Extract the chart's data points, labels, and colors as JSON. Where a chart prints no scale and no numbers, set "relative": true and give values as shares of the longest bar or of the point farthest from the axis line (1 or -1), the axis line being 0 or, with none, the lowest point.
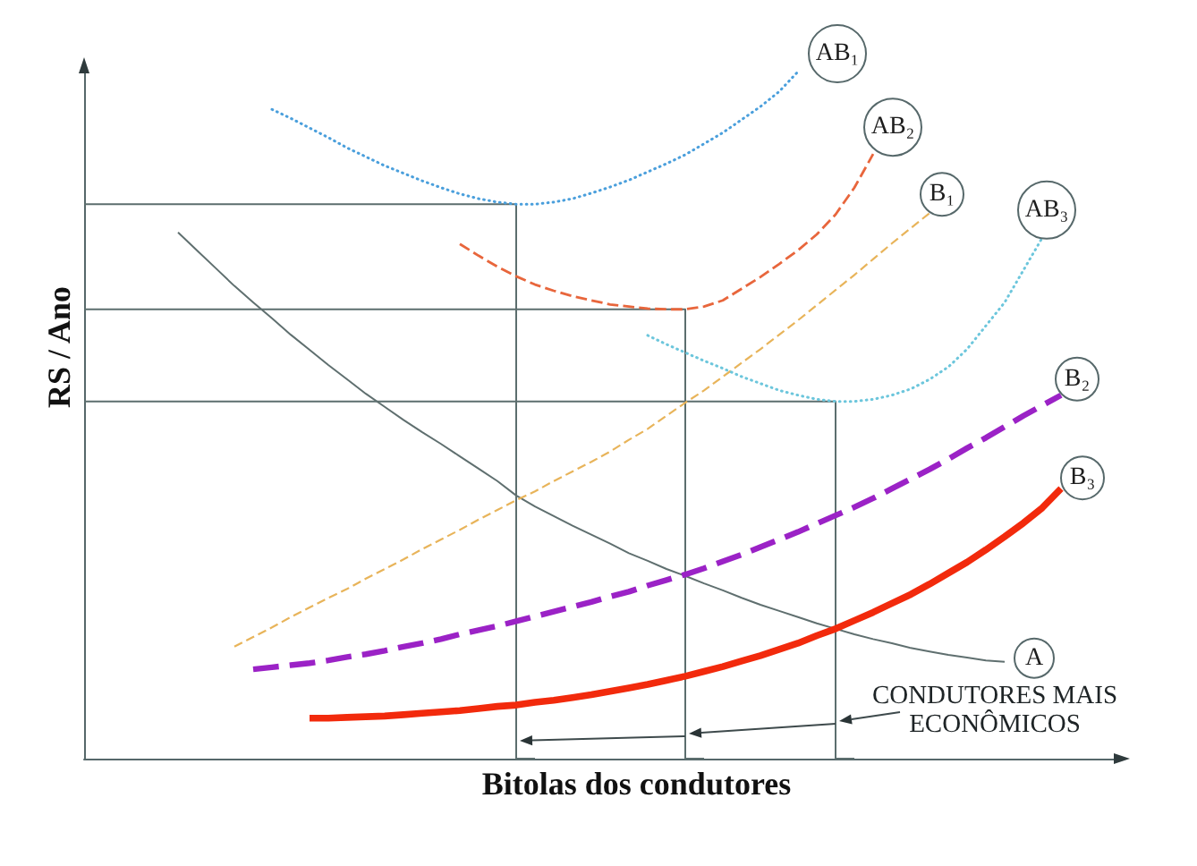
{
  "chart_data": {
    "type": "line",
    "relative": true,
    "xlabel": "Bitolas dos condutores",
    "ylabel": "RS / Ano",
    "annotations": [
      "CONDUTORES MAIS ECONÔMICOS"
    ],
    "legend": false,
    "grid": false,
    "tick_labels": false,
    "marker": "none",
    "categories": [
      null,
      null,
      null,
      null,
      null,
      null,
      null,
      null,
      null,
      null,
      null,
      null,
      null,
      null,
      null,
      null,
      null,
      null,
      null,
      null,
      null,
      null,
      null,
      null,
      null,
      null,
      null,
      null,
      null,
      null,
      null,
      null,
      null,
      null,
      null,
      null,
      null,
      null,
      null,
      null,
      null,
      null,
      null,
      null,
      null,
      null,
      null,
      null,
      null,
      null,
      null,
      null,
      null,
      null,
      null,
      null
    ],
    "series": [
      {
        "name": "A",
        "color": "#5f6f6f",
        "line_style": "solid",
        "values": [
          null,
          null,
          null,
          null,
          null,
          0.766,
          0.74,
          0.714,
          0.688,
          0.664,
          0.641,
          0.617,
          0.595,
          0.573,
          0.552,
          0.531,
          0.512,
          0.493,
          0.475,
          0.458,
          0.44,
          0.422,
          0.404,
          0.383,
          0.367,
          0.353,
          0.339,
          0.326,
          0.313,
          0.299,
          0.288,
          0.276,
          0.266,
          0.255,
          0.245,
          0.234,
          0.224,
          0.215,
          0.206,
          0.197,
          0.189,
          0.181,
          0.174,
          0.168,
          0.161,
          0.156,
          0.151,
          0.147,
          0.143,
          0.141,
          null,
          null,
          null,
          null,
          null,
          null
        ]
      },
      {
        "name": "B₁",
        "color": "#e8b45a",
        "line_style": "dashed",
        "values": [
          null,
          null,
          null,
          null,
          null,
          null,
          null,
          null,
          0.163,
          0.177,
          0.191,
          0.206,
          0.22,
          0.234,
          0.247,
          0.262,
          0.276,
          0.29,
          0.305,
          0.319,
          0.333,
          0.348,
          0.362,
          0.376,
          0.389,
          0.404,
          0.418,
          0.432,
          0.447,
          0.464,
          0.48,
          0.499,
          0.518,
          0.536,
          0.556,
          0.576,
          0.596,
          0.617,
          0.638,
          0.66,
          0.682,
          0.704,
          0.727,
          0.75,
          0.772,
          0.794,
          null,
          null,
          null,
          null,
          null,
          null,
          null,
          null,
          null,
          null
        ]
      },
      {
        "name": "B₂",
        "color": "#9b22c6",
        "line_style": "dashed",
        "values": [
          null,
          null,
          null,
          null,
          null,
          null,
          null,
          null,
          null,
          0.13,
          0.133,
          0.136,
          0.139,
          0.143,
          0.148,
          0.152,
          0.157,
          0.163,
          0.168,
          0.174,
          0.181,
          0.187,
          0.193,
          0.2,
          0.207,
          0.214,
          0.221,
          0.228,
          0.236,
          0.243,
          0.252,
          0.26,
          0.268,
          0.277,
          0.287,
          0.297,
          0.308,
          0.319,
          0.33,
          0.342,
          0.354,
          0.366,
          0.379,
          0.393,
          0.407,
          0.421,
          0.436,
          0.452,
          0.467,
          0.483,
          0.499,
          0.514,
          0.529,
          null,
          null,
          null
        ]
      },
      {
        "name": "B₃",
        "color": "#f22a0c",
        "line_style": "solid",
        "values": [
          null,
          null,
          null,
          null,
          null,
          null,
          null,
          null,
          null,
          null,
          null,
          null,
          0.059,
          0.059,
          0.06,
          0.061,
          0.062,
          0.064,
          0.066,
          0.068,
          0.07,
          0.073,
          0.076,
          0.078,
          0.082,
          0.085,
          0.089,
          0.093,
          0.098,
          0.103,
          0.108,
          0.114,
          0.12,
          0.127,
          0.134,
          0.142,
          0.15,
          0.159,
          0.168,
          0.179,
          0.189,
          0.201,
          0.213,
          0.226,
          0.239,
          0.254,
          0.27,
          0.286,
          0.304,
          0.323,
          0.343,
          0.365,
          0.393,
          null,
          null,
          null
        ]
      },
      {
        "name": "AB₁",
        "color": "#4a9fdc",
        "line_style": "dotted",
        "values": [
          null,
          null,
          null,
          null,
          null,
          null,
          null,
          null,
          null,
          null,
          0.945,
          0.932,
          0.918,
          0.904,
          0.889,
          0.876,
          0.863,
          0.852,
          0.841,
          0.831,
          0.822,
          0.815,
          0.81,
          0.807,
          0.807,
          0.81,
          0.815,
          0.823,
          0.832,
          0.842,
          0.854,
          0.866,
          0.879,
          0.895,
          0.911,
          0.93,
          0.949,
          0.971,
          1,
          null,
          null,
          null,
          null,
          null,
          null,
          null,
          null,
          null,
          null,
          null,
          null,
          null,
          null,
          null,
          null,
          null
        ]
      },
      {
        "name": "AB₂",
        "color": "#e8663c",
        "line_style": "dashed",
        "values": [
          null,
          null,
          null,
          null,
          null,
          null,
          null,
          null,
          null,
          null,
          null,
          null,
          null,
          null,
          null,
          null,
          null,
          null,
          null,
          null,
          0.749,
          0.732,
          0.716,
          0.702,
          0.69,
          0.681,
          0.673,
          0.667,
          0.661,
          0.658,
          0.655,
          0.654,
          0.654,
          0.658,
          0.667,
          0.684,
          0.701,
          0.72,
          0.74,
          0.763,
          0.792,
          0.831,
          0.88,
          null,
          null,
          null,
          null,
          null,
          null,
          null,
          null,
          null,
          null,
          null,
          null,
          null
        ]
      },
      {
        "name": "AB₃",
        "color": "#6cc6dc",
        "line_style": "dotted",
        "values": [
          null,
          null,
          null,
          null,
          null,
          null,
          null,
          null,
          null,
          null,
          null,
          null,
          null,
          null,
          null,
          null,
          null,
          null,
          null,
          null,
          null,
          null,
          null,
          null,
          null,
          null,
          null,
          null,
          null,
          null,
          0.616,
          0.603,
          0.591,
          0.579,
          0.568,
          0.556,
          0.546,
          0.536,
          0.529,
          0.523,
          0.52,
          0.52,
          0.523,
          0.529,
          0.538,
          0.552,
          0.57,
          0.596,
          0.63,
          0.664,
          0.711,
          0.758,
          null,
          null,
          null,
          null
        ]
      },
      {
        "type": "step",
        "color": "#5c6e6e",
        "values": [
          0.807,
          0.807,
          0.807,
          0.807,
          0.807,
          0.807,
          0.807,
          0.807,
          0.807,
          0.807,
          0.807,
          0.807,
          0.807,
          0.807,
          0.807,
          0.807,
          0.807,
          0.807,
          0.807,
          0.807,
          0.807,
          0.807,
          0.807,
          0.807,
          0,
          null,
          null,
          null,
          null,
          null,
          null,
          null,
          null,
          null,
          null,
          null,
          null,
          null,
          null,
          null,
          null,
          null,
          null,
          null,
          null,
          null,
          null,
          null,
          null,
          null,
          null,
          null,
          null,
          null,
          null,
          null
        ]
      },
      {
        "type": "step",
        "color": "#5c6e6e",
        "values": [
          0.654,
          0.654,
          0.654,
          0.654,
          0.654,
          0.654,
          0.654,
          0.654,
          0.654,
          0.654,
          0.654,
          0.654,
          0.654,
          0.654,
          0.654,
          0.654,
          0.654,
          0.654,
          0.654,
          0.654,
          0.654,
          0.654,
          0.654,
          0.654,
          0.654,
          0.654,
          0.654,
          0.654,
          0.654,
          0.654,
          0.654,
          0.654,
          0.654,
          0,
          null,
          null,
          null,
          null,
          null,
          null,
          null,
          null,
          null,
          null,
          null,
          null,
          null,
          null,
          null,
          null,
          null,
          null,
          null,
          null,
          null,
          null
        ]
      },
      {
        "type": "step",
        "color": "#5c6e6e",
        "values": [
          0.52,
          0.52,
          0.52,
          0.52,
          0.52,
          0.52,
          0.52,
          0.52,
          0.52,
          0.52,
          0.52,
          0.52,
          0.52,
          0.52,
          0.52,
          0.52,
          0.52,
          0.52,
          0.52,
          0.52,
          0.52,
          0.52,
          0.52,
          0.52,
          0.52,
          0.52,
          0.52,
          0.52,
          0.52,
          0.52,
          0.52,
          0.52,
          0.52,
          0.52,
          0.52,
          0.52,
          0.52,
          0.52,
          0.52,
          0.52,
          0.52,
          0,
          null,
          null,
          null,
          null,
          null,
          null,
          null,
          null,
          null,
          null,
          null,
          null,
          null,
          null
        ]
      }
    ]
  }
}
